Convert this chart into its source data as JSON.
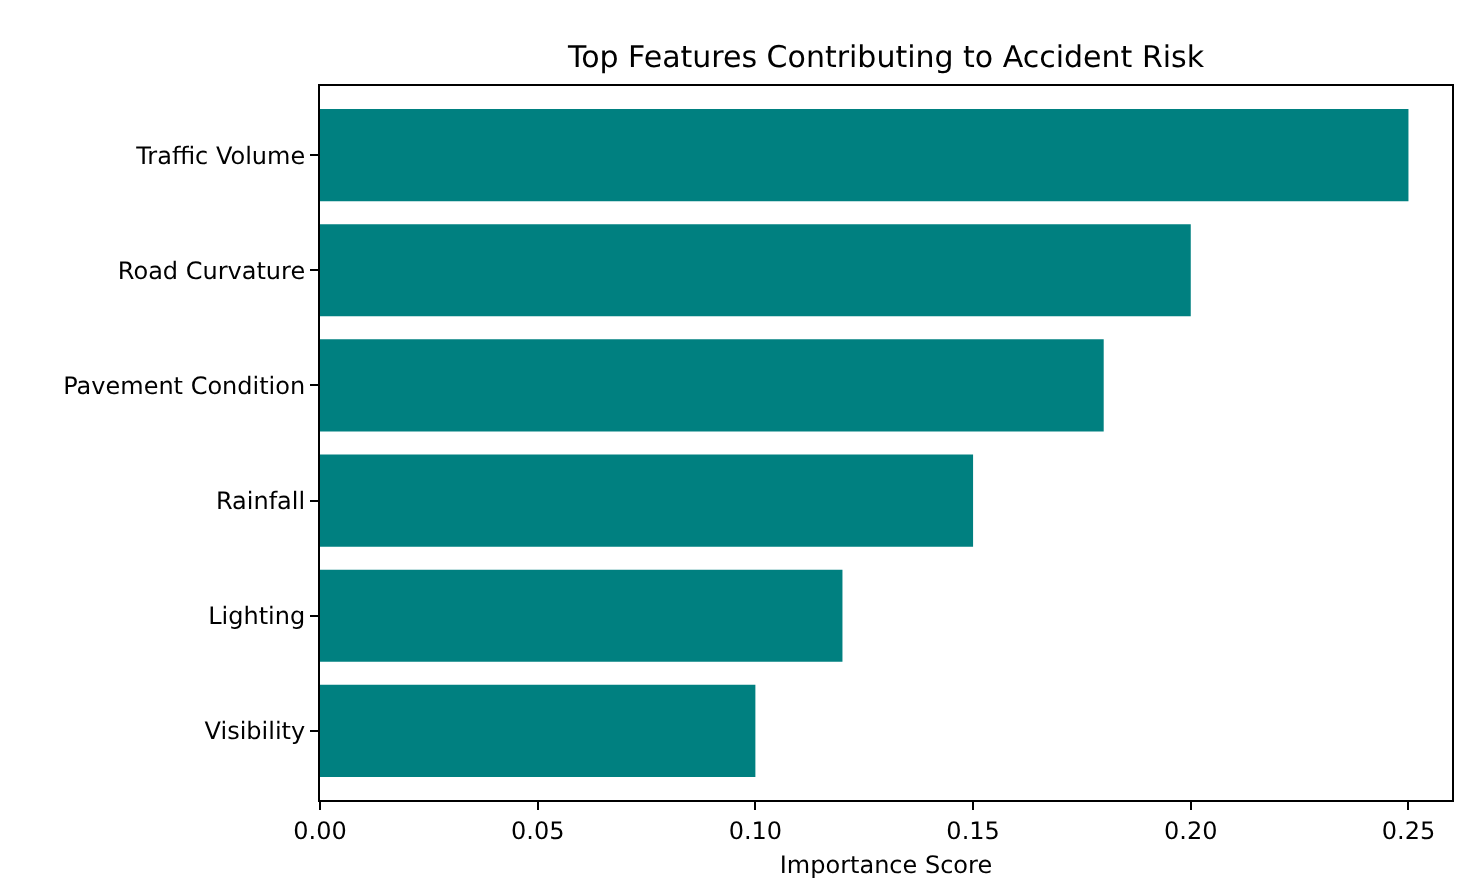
{
  "chart_data": {
    "type": "bar",
    "orientation": "horizontal",
    "title": "Top Features Contributing to Accident Risk",
    "xlabel": "Importance Score",
    "categories": [
      "Traffic Volume",
      "Road Curvature",
      "Pavement Condition",
      "Rainfall",
      "Lighting",
      "Visibility"
    ],
    "values": [
      0.25,
      0.2,
      0.18,
      0.15,
      0.12,
      0.1
    ],
    "color": "#008080",
    "xlim": [
      0,
      0.26
    ],
    "xticks": [
      {
        "value": 0,
        "label": "0.00"
      },
      {
        "value": 0.05,
        "label": "0.05"
      },
      {
        "value": 0.1,
        "label": "0.10"
      },
      {
        "value": 0.15,
        "label": "0.15"
      },
      {
        "value": 0.2,
        "label": "0.20"
      },
      {
        "value": 0.25,
        "label": "0.25"
      }
    ],
    "grid": false
  }
}
